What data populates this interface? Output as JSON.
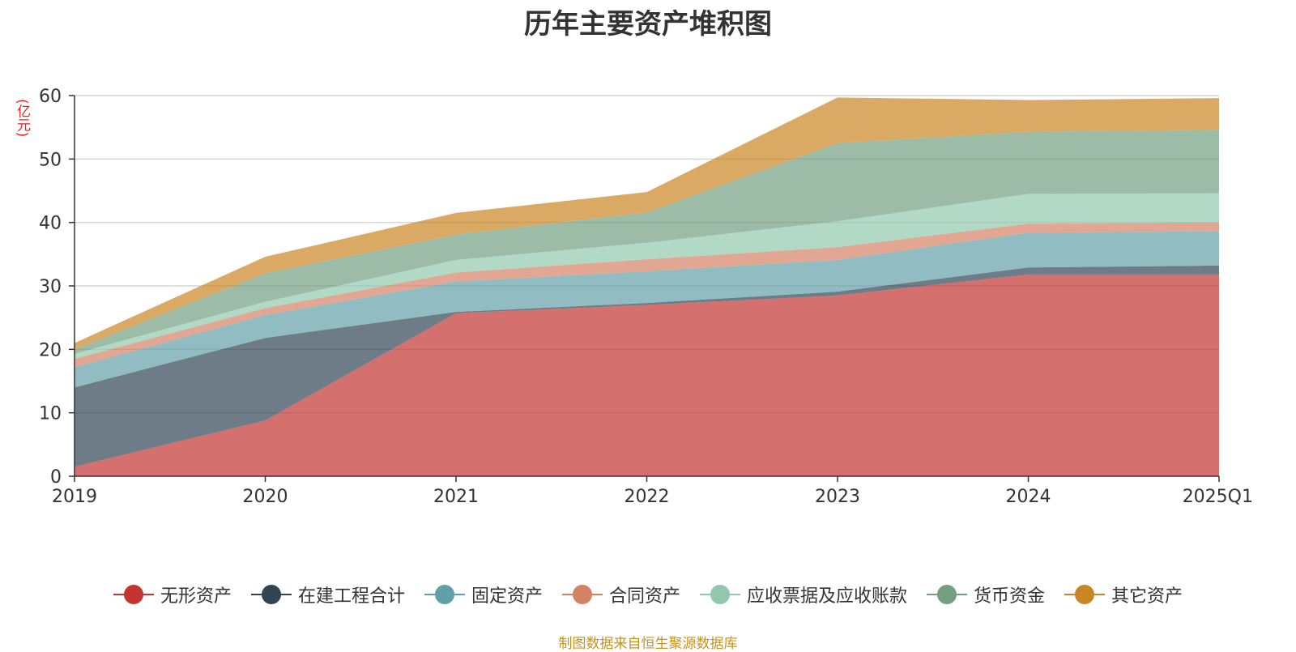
{
  "chart_data": {
    "type": "area",
    "stacked": true,
    "title": "历年主要资产堆积图",
    "unit_label": "(亿元)",
    "source_note": "制图数据来自恒生聚源数据库",
    "categories": [
      "2019",
      "2020",
      "2021",
      "2022",
      "2023",
      "2024",
      "2025Q1"
    ],
    "ylim": [
      0,
      60
    ],
    "yticks": [
      0,
      10,
      20,
      30,
      40,
      50,
      60
    ],
    "grid": true,
    "legend_position": "bottom",
    "series": [
      {
        "name": "无形资产",
        "color": "#c23531",
        "values": [
          1.5,
          8.8,
          25.7,
          27.0,
          28.5,
          31.8,
          31.8
        ]
      },
      {
        "name": "在建工程合计",
        "color": "#2f4554",
        "values": [
          12.5,
          13.0,
          0.2,
          0.3,
          0.6,
          1.1,
          1.4
        ]
      },
      {
        "name": "固定资产",
        "color": "#61a0a8",
        "values": [
          3.2,
          3.6,
          4.8,
          5.0,
          5.0,
          5.5,
          5.4
        ]
      },
      {
        "name": "合同资产",
        "color": "#d48265",
        "values": [
          1.3,
          1.1,
          1.4,
          1.9,
          2.0,
          1.4,
          1.4
        ]
      },
      {
        "name": "应收票据及应收账款",
        "color": "#91c7ae",
        "values": [
          0.8,
          1.0,
          2.0,
          2.6,
          4.1,
          4.7,
          4.6
        ]
      },
      {
        "name": "货币资金",
        "color": "#749f83",
        "values": [
          0.7,
          4.5,
          4.0,
          4.8,
          12.3,
          9.8,
          10.0
        ]
      },
      {
        "name": "其它资产",
        "color": "#ca8622",
        "values": [
          1.0,
          2.6,
          3.4,
          3.2,
          7.2,
          5.0,
          5.0
        ]
      }
    ]
  }
}
